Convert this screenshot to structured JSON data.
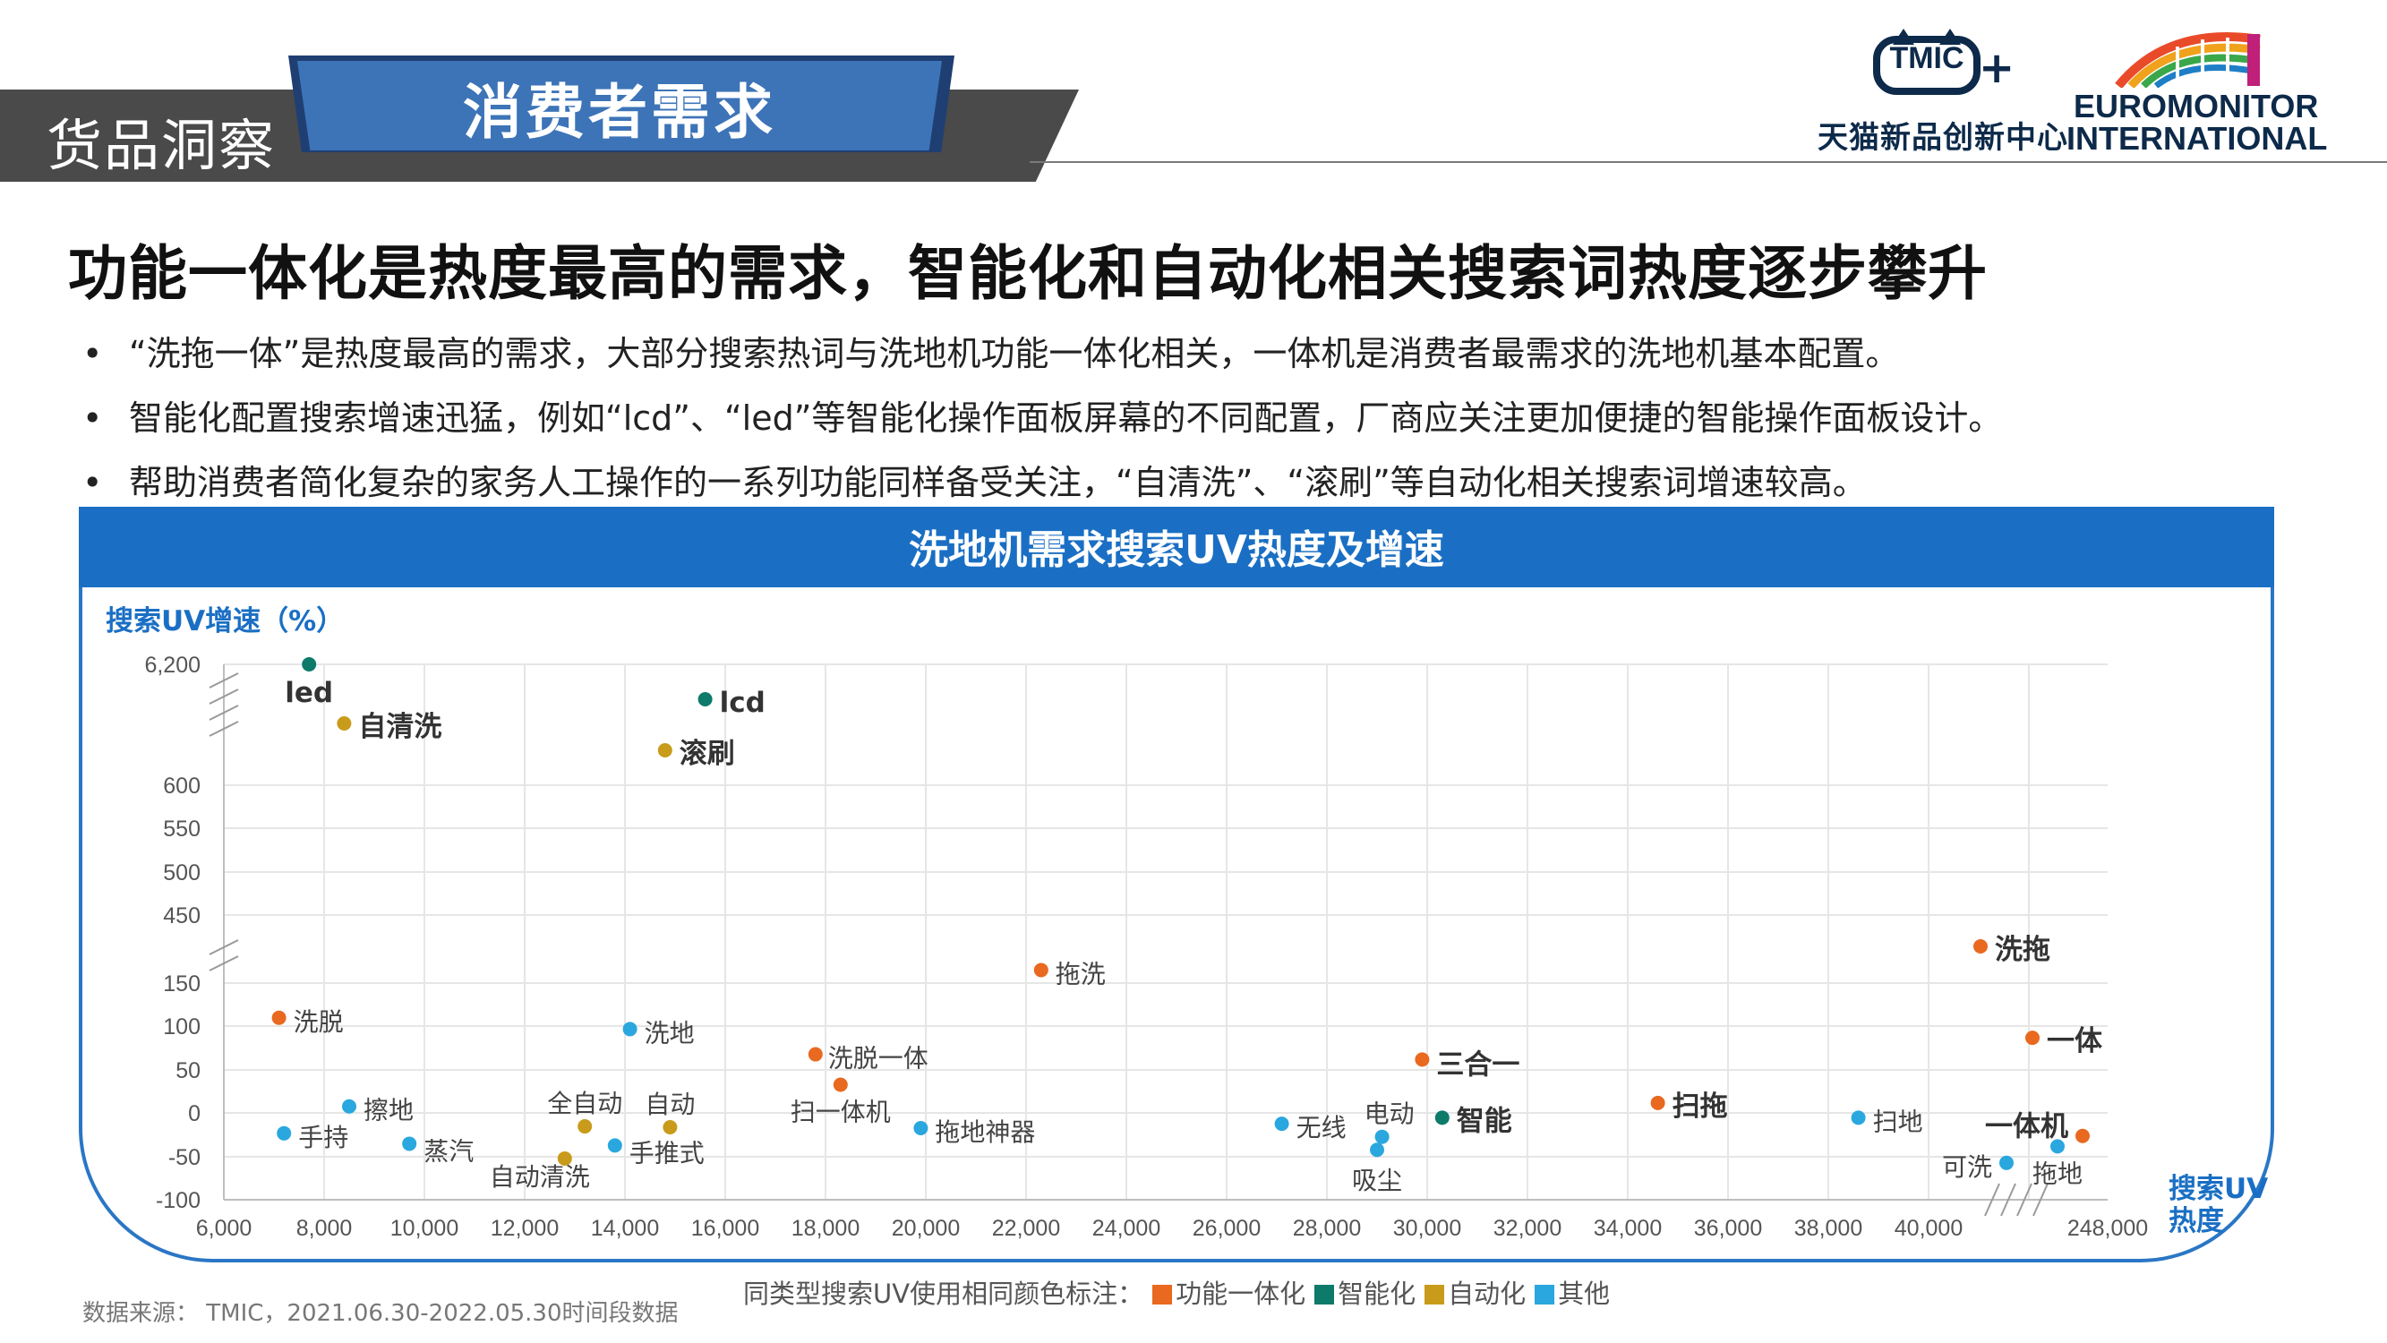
{
  "header": {
    "section_label": "货品洞察",
    "tab_label": "消费者需求",
    "tmic_logo_text": "TMIC",
    "tmic_name": "天猫新品创新中心",
    "euromonitor_line1": "EUROMONITOR",
    "euromonitor_line2": "INTERNATIONAL"
  },
  "headline": "功能一体化是热度最高的需求，智能化和自动化相关搜索词热度逐步攀升",
  "bullets": [
    "“洗拖一体”是热度最高的需求，大部分搜索热词与洗地机功能一体化相关，一体机是消费者最需求的洗地机基本配置。",
    "智能化配置搜索增速迅猛，例如“lcd”、“led”等智能化操作面板屏幕的不同配置，厂商应关注更加便捷的智能操作面板设计。",
    "帮助消费者简化复杂的家务人工操作的一系列功能同样备受关注，“自清洗”、“滚刷”等自动化相关搜索词增速较高。"
  ],
  "bullet_marker": "•",
  "chart_data": {
    "type": "scatter",
    "title": "洗地机需求搜索UV热度及增速",
    "ylabel": "搜索UV增速（%）",
    "xlabel_line1": "搜索UV",
    "xlabel_line2": "热度",
    "x_ticks": [
      "6,000",
      "8,000",
      "10,000",
      "12,000",
      "14,000",
      "16,000",
      "18,000",
      "20,000",
      "22,000",
      "24,000",
      "26,000",
      "28,000",
      "30,000",
      "32,000",
      "34,000",
      "36,000",
      "38,000",
      "40,000",
      "248,000"
    ],
    "y_ticks": [
      "6,200",
      "600",
      "550",
      "500",
      "450",
      "150",
      "100",
      "50",
      "0",
      "-50",
      "-100"
    ],
    "axis_breaks": "y between 150 and 450 and between 600 and 6,200; x between 40,000 and 248,000",
    "grid": true,
    "colors": {
      "功能一体化": "#e8691f",
      "智能化": "#0d7a6a",
      "自动化": "#c89b1a",
      "其他": "#2aa7de"
    },
    "points": [
      {
        "label": "led",
        "x": 7700,
        "y": 6200,
        "category": "智能化",
        "bold": true
      },
      {
        "label": "自清洗",
        "x": 8400,
        "y": null,
        "category": "自动化",
        "bold": true
      },
      {
        "label": "lcd",
        "x": 15600,
        "y": null,
        "category": "智能化",
        "bold": true
      },
      {
        "label": "滚刷",
        "x": 14800,
        "y": null,
        "category": "自动化",
        "bold": true
      },
      {
        "label": "拖洗",
        "x": 22300,
        "y": 165,
        "category": "功能一体化",
        "bold": false
      },
      {
        "label": "洗脱",
        "x": 7100,
        "y": 110,
        "category": "功能一体化",
        "bold": false
      },
      {
        "label": "洗地",
        "x": 14100,
        "y": 97,
        "category": "其他",
        "bold": false
      },
      {
        "label": "洗脱一体",
        "x": 17800,
        "y": 68,
        "category": "功能一体化",
        "bold": false
      },
      {
        "label": "扫一体机",
        "x": 18300,
        "y": 33,
        "category": "功能一体化",
        "bold": false
      },
      {
        "label": "擦地",
        "x": 8500,
        "y": 8,
        "category": "其他",
        "bold": false
      },
      {
        "label": "手持",
        "x": 7200,
        "y": -23,
        "category": "其他",
        "bold": false
      },
      {
        "label": "蒸汽",
        "x": 9700,
        "y": -35,
        "category": "其他",
        "bold": false
      },
      {
        "label": "全自动",
        "x": 13200,
        "y": -15,
        "category": "自动化",
        "bold": false
      },
      {
        "label": "自动",
        "x": 14900,
        "y": -16,
        "category": "自动化",
        "bold": false
      },
      {
        "label": "手推式",
        "x": 13800,
        "y": -37,
        "category": "其他",
        "bold": false
      },
      {
        "label": "自动清洗",
        "x": 12800,
        "y": -52,
        "category": "自动化",
        "bold": false
      },
      {
        "label": "拖地神器",
        "x": 19900,
        "y": -17,
        "category": "其他",
        "bold": false
      },
      {
        "label": "无线",
        "x": 27100,
        "y": -12,
        "category": "其他",
        "bold": false
      },
      {
        "label": "电动",
        "x": 29100,
        "y": -27,
        "category": "其他",
        "bold": false
      },
      {
        "label": "吸尘",
        "x": 29000,
        "y": -42,
        "category": "其他",
        "bold": false
      },
      {
        "label": "三合一",
        "x": 29900,
        "y": 62,
        "category": "功能一体化",
        "bold": true
      },
      {
        "label": "智能",
        "x": 30300,
        "y": -5,
        "category": "智能化",
        "bold": true
      },
      {
        "label": "扫拖",
        "x": 34600,
        "y": 12,
        "category": "功能一体化",
        "bold": true
      },
      {
        "label": "扫地",
        "x": 38600,
        "y": -5,
        "category": "其他",
        "bold": false
      },
      {
        "label": "洗拖",
        "x": null,
        "y": null,
        "category": "功能一体化",
        "bold": true
      },
      {
        "label": "一体",
        "x": null,
        "y": 87,
        "category": "功能一体化",
        "bold": true
      },
      {
        "label": "一体机",
        "x": null,
        "y": -26,
        "category": "功能一体化",
        "bold": true
      },
      {
        "label": "可洗",
        "x": null,
        "y": -57,
        "category": "其他",
        "bold": false
      },
      {
        "label": "拖地",
        "x": null,
        "y": -38,
        "category": "其他",
        "bold": false
      }
    ]
  },
  "footer": {
    "source": "数据来源： TMIC，2021.06.30-2022.05.30时间段数据",
    "legend_prefix": "同类型搜索UV使用相同颜色标注：",
    "legend_items": [
      "功能一体化",
      "智能化",
      "自动化",
      "其他"
    ]
  }
}
